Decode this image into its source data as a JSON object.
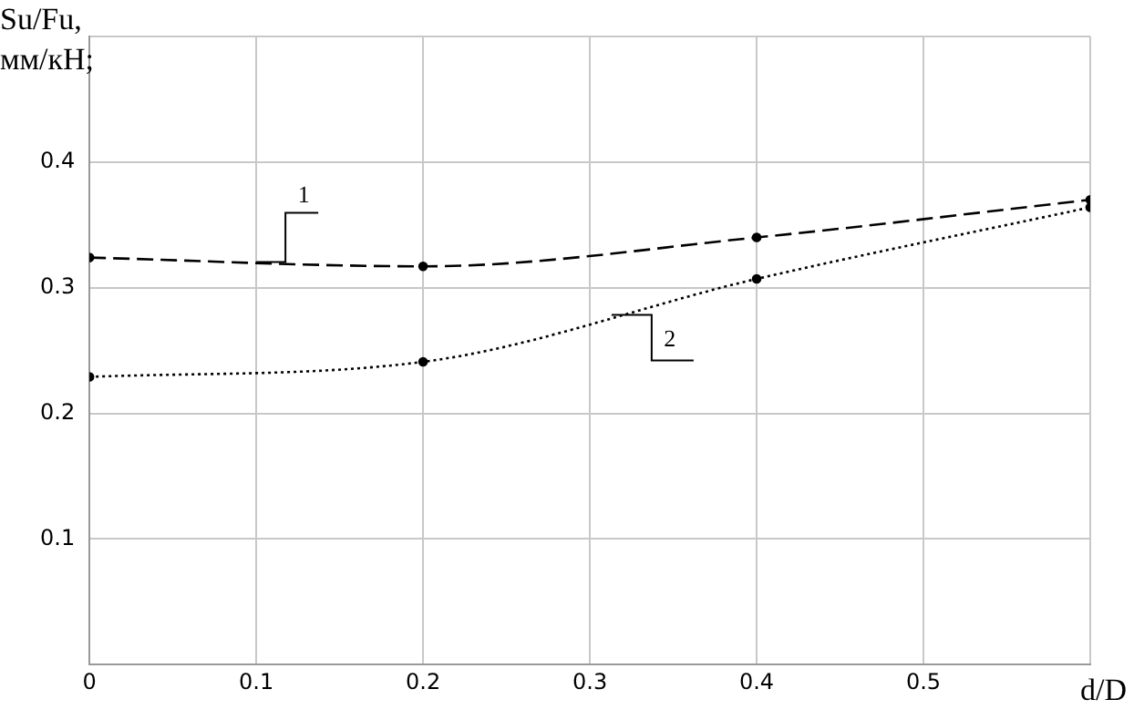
{
  "chart_data": {
    "type": "line",
    "xlabel": "d/D",
    "ylabel": "Su/Fu, мм/кН;",
    "x": [
      0,
      0.2,
      0.4,
      0.6
    ],
    "series": [
      {
        "name": "1",
        "color": "#000000",
        "line_style": "dashed",
        "values": [
          0.324,
          0.317,
          0.34,
          0.37
        ]
      },
      {
        "name": "2",
        "color": "#000000",
        "line_style": "dotted",
        "values": [
          0.229,
          0.241,
          0.307,
          0.364
        ]
      }
    ],
    "xlim": [
      0,
      0.6
    ],
    "xticks": [
      0,
      0.1,
      0.2,
      0.3,
      0.4,
      0.5,
      {
        "value": 0.6,
        "label": null
      }
    ],
    "ylim": [
      0,
      0.5
    ],
    "yticks": [
      0.1,
      0.2,
      0.3,
      0.4,
      {
        "value": 0.5,
        "label": null
      }
    ],
    "grid": true,
    "legend": false,
    "marker": "circle"
  }
}
